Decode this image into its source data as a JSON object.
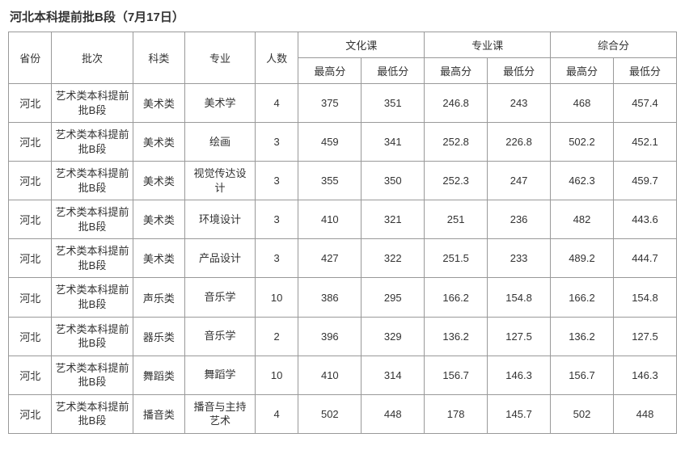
{
  "title": "河北本科提前批B段（7月17日）",
  "table": {
    "header_groups": {
      "province": "省份",
      "batch": "批次",
      "category": "科类",
      "major": "专业",
      "count": "人数",
      "culture": "文化课",
      "professional": "专业课",
      "composite": "综合分"
    },
    "sub_headers": {
      "max": "最高分",
      "min": "最低分"
    },
    "rows": [
      {
        "province": "河北",
        "batch": "艺术类本科提前批B段",
        "category": "美术类",
        "major": "美术学",
        "count": "4",
        "culture_max": "375",
        "culture_min": "351",
        "prof_max": "246.8",
        "prof_min": "243",
        "comp_max": "468",
        "comp_min": "457.4"
      },
      {
        "province": "河北",
        "batch": "艺术类本科提前批B段",
        "category": "美术类",
        "major": "绘画",
        "count": "3",
        "culture_max": "459",
        "culture_min": "341",
        "prof_max": "252.8",
        "prof_min": "226.8",
        "comp_max": "502.2",
        "comp_min": "452.1"
      },
      {
        "province": "河北",
        "batch": "艺术类本科提前批B段",
        "category": "美术类",
        "major": "视觉传达设计",
        "count": "3",
        "culture_max": "355",
        "culture_min": "350",
        "prof_max": "252.3",
        "prof_min": "247",
        "comp_max": "462.3",
        "comp_min": "459.7"
      },
      {
        "province": "河北",
        "batch": "艺术类本科提前批B段",
        "category": "美术类",
        "major": "环境设计",
        "count": "3",
        "culture_max": "410",
        "culture_min": "321",
        "prof_max": "251",
        "prof_min": "236",
        "comp_max": "482",
        "comp_min": "443.6"
      },
      {
        "province": "河北",
        "batch": "艺术类本科提前批B段",
        "category": "美术类",
        "major": "产品设计",
        "count": "3",
        "culture_max": "427",
        "culture_min": "322",
        "prof_max": "251.5",
        "prof_min": "233",
        "comp_max": "489.2",
        "comp_min": "444.7"
      },
      {
        "province": "河北",
        "batch": "艺术类本科提前批B段",
        "category": "声乐类",
        "major": "音乐学",
        "count": "10",
        "culture_max": "386",
        "culture_min": "295",
        "prof_max": "166.2",
        "prof_min": "154.8",
        "comp_max": "166.2",
        "comp_min": "154.8"
      },
      {
        "province": "河北",
        "batch": "艺术类本科提前批B段",
        "category": "器乐类",
        "major": "音乐学",
        "count": "2",
        "culture_max": "396",
        "culture_min": "329",
        "prof_max": "136.2",
        "prof_min": "127.5",
        "comp_max": "136.2",
        "comp_min": "127.5"
      },
      {
        "province": "河北",
        "batch": "艺术类本科提前批B段",
        "category": "舞蹈类",
        "major": "舞蹈学",
        "count": "10",
        "culture_max": "410",
        "culture_min": "314",
        "prof_max": "156.7",
        "prof_min": "146.3",
        "comp_max": "156.7",
        "comp_min": "146.3"
      },
      {
        "province": "河北",
        "batch": "艺术类本科提前批B段",
        "category": "播音类",
        "major": "播音与主持艺术",
        "count": "4",
        "culture_max": "502",
        "culture_min": "448",
        "prof_max": "178",
        "prof_min": "145.7",
        "comp_max": "502",
        "comp_min": "448"
      }
    ]
  },
  "styling": {
    "background_color": "#ffffff",
    "border_color": "#999999",
    "text_color": "#333333",
    "title_fontsize": 15,
    "cell_fontsize": 13,
    "font_family": "Microsoft YaHei"
  }
}
